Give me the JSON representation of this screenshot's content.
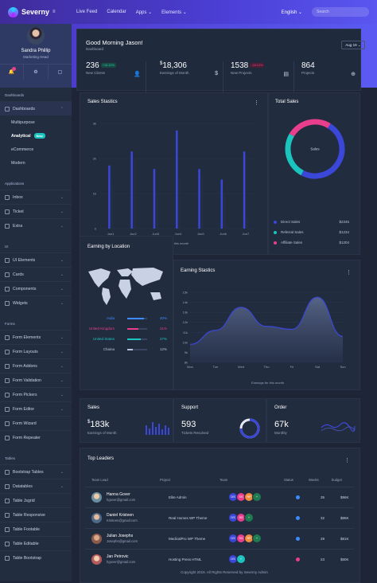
{
  "brand": {
    "name": "Severny"
  },
  "topnav": {
    "items": [
      "Live Feed",
      "Calendar",
      "Apps",
      "Elements"
    ]
  },
  "language": "English",
  "search": {
    "placeholder": "Search"
  },
  "profile": {
    "name": "Sandra Phillip",
    "role": "Marketing Head"
  },
  "sidebar": {
    "dashboards": {
      "title": "Dashboards",
      "main": "Dashboards",
      "items": [
        "Multipurpose",
        "Analytical",
        "eCommerce",
        "Modern"
      ],
      "new_badge": "New"
    },
    "applications": {
      "title": "Applications",
      "items": [
        "Inbox",
        "Ticket",
        "Extra"
      ]
    },
    "ui": {
      "title": "UI",
      "items": [
        "UI Elements",
        "Cards",
        "Components",
        "Widgets"
      ]
    },
    "forms": {
      "title": "Forms",
      "items": [
        "Form Elements",
        "Form Layouts",
        "Form Addons",
        "Form Validation",
        "Form Pickers",
        "Form Editor",
        "Form Wizard",
        "Form Repeater"
      ]
    },
    "tables": {
      "title": "Tables",
      "items": [
        "Bootstrap Tables",
        "Datatables",
        "Table Jsgrid",
        "Table Responsive",
        "Table Footable",
        "Table Editable",
        "Table Bootstrap"
      ]
    }
  },
  "header": {
    "greeting": "Good Morning Jason!",
    "breadcrumb": "Dashboard",
    "date_filter": "Aug 19"
  },
  "stats": [
    {
      "value": "236",
      "label": "New Clients",
      "badge": "+18.12%",
      "icon": "user-plus-icon"
    },
    {
      "value": "18,306",
      "prefix": "$",
      "label": "Earnings of Month",
      "icon": "dollar-icon"
    },
    {
      "value": "1538",
      "label": "New Projects",
      "badge": "-18.12%",
      "icon": "document-icon"
    },
    {
      "value": "864",
      "label": "Projects",
      "icon": "globe-icon"
    }
  ],
  "sales_statistics": {
    "title": "Sales Stastics",
    "caption": "Sales for this month",
    "chart_data": {
      "type": "bar",
      "categories": [
        "Jun1",
        "Jun2",
        "Jun3",
        "Jun4",
        "Jun5",
        "Jun6",
        "Jun7"
      ],
      "series": [
        {
          "values": [
            1.8,
            2.2,
            1.7,
            2.8,
            1.7,
            1.4,
            2.2
          ]
        },
        {
          "values": [
            1.4,
            2.0,
            1.0,
            1.4,
            1.5,
            1.0,
            0.3
          ]
        }
      ],
      "yticks": [
        "0",
        "1k",
        "2k",
        "3k"
      ],
      "ylim": [
        0,
        3
      ]
    }
  },
  "total_sales": {
    "title": "Total Sales",
    "center_label": "Sales",
    "chart_data": {
      "type": "pie",
      "labels": [
        "Direct Sales",
        "Referral Sales",
        "Affiliate Sales"
      ],
      "values": [
        2345,
        1234,
        1204
      ],
      "display_values": [
        "$2345",
        "$1234",
        "$1204"
      ],
      "colors": [
        "#3b47d9",
        "#1bc5bd",
        "#e83e8c"
      ]
    }
  },
  "earning_location": {
    "title": "Earning by Location",
    "rows": [
      {
        "country": "India",
        "pct": "40%",
        "fill": 0.85,
        "color": "#3d8bfd"
      },
      {
        "country": "United Kingdom",
        "pct": "21%",
        "fill": 0.55,
        "color": "#e83e8c"
      },
      {
        "country": "United States",
        "pct": "27%",
        "fill": 0.7,
        "color": "#1bc5bd"
      },
      {
        "country": "Chaina",
        "pct": "12%",
        "fill": 0.3,
        "color": "#b9c1d9"
      }
    ]
  },
  "earning_statistics": {
    "title": "Earning Stastics",
    "caption": "Earnings for this month",
    "chart_data": {
      "type": "area",
      "x": [
        "Mon",
        "Tue",
        "Wed",
        "Thu",
        "Fri",
        "Sat",
        "Sun"
      ],
      "values": [
        9.8,
        11.2,
        13.5,
        11.6,
        11.3,
        14.5,
        10.6
      ],
      "yticks": [
        "8k",
        "9k",
        "10k",
        "11k",
        "12k",
        "13k",
        "14k",
        "15k"
      ],
      "ylim": [
        8,
        15
      ]
    }
  },
  "mini_sales": {
    "title": "Sales",
    "value": "183k",
    "prefix": "$",
    "label": "Earnings of Month"
  },
  "support": {
    "title": "Support",
    "value": "593",
    "label": "Tickets Resolved",
    "gauge": 0.75
  },
  "order": {
    "title": "Order",
    "value": "67k",
    "label": "Monthly"
  },
  "leaders": {
    "title": "Top Leaders",
    "columns": [
      "Team Lead",
      "Project",
      "Team",
      "Status",
      "Weeks",
      "budget"
    ],
    "rows": [
      {
        "name": "Hanna Gover",
        "email": "hgover@gmail.com",
        "project": "Elite Admin",
        "team": [
          "DS",
          "SS",
          "RP",
          "+"
        ],
        "status_color": "#3d8bfd",
        "weeks": "35",
        "budget": "$96K"
      },
      {
        "name": "Daniel Kristeen",
        "email": "Kristeen@gmail.com",
        "project": "Real Homes WP Theme",
        "team": [
          "DS",
          "SS",
          "+"
        ],
        "status_color": "#3d8bfd",
        "weeks": "32",
        "budget": "$85K"
      },
      {
        "name": "Julian Josephs",
        "email": "Josephs@gmail.com",
        "project": "MedicalPro WP Theme",
        "team": [
          "DS",
          "SS",
          "RP",
          "+"
        ],
        "status_color": "#3d8bfd",
        "weeks": "29",
        "budget": "$81K"
      },
      {
        "name": "Jan Petrovic",
        "email": "hgover@gmail.com",
        "project": "Hosting Press HTML",
        "team": [
          "DS",
          "+"
        ],
        "status_color": "#e83e8c",
        "weeks": "23",
        "budget": "$80K"
      }
    ]
  },
  "footer": "Copyright 2019. All Rights Reserved by Severny Admin"
}
